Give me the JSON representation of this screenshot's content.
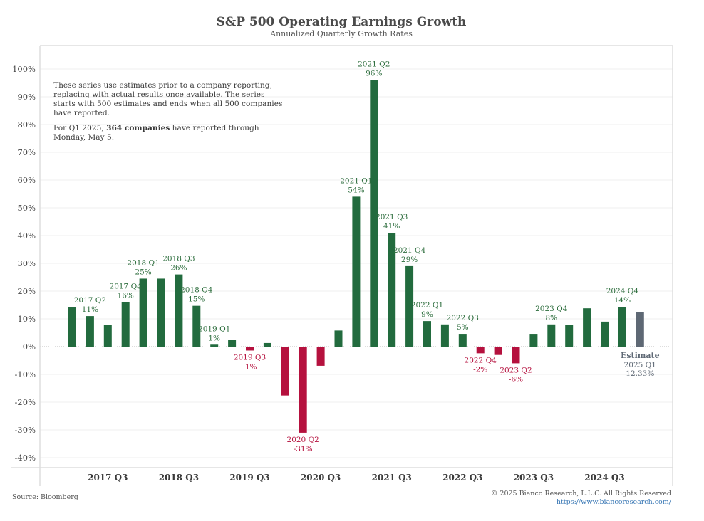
{
  "chart_data": {
    "type": "bar",
    "title": "S&P 500 Operating Earnings Growth",
    "subtitle": "Annualized Quarterly Growth Rates",
    "xlabel": "",
    "ylabel": "",
    "ylim": [
      -45,
      105
    ],
    "y_ticks": [
      100,
      90,
      80,
      70,
      60,
      50,
      40,
      30,
      20,
      10,
      0,
      -10,
      -20,
      -30,
      -40
    ],
    "y_tick_labels": [
      "100%",
      "90%",
      "80%",
      "70%",
      "60%",
      "50%",
      "40%",
      "30%",
      "20%",
      "10%",
      "0%",
      "-10%",
      "-20%",
      "-30%",
      "-40%"
    ],
    "grid": true,
    "categories": [
      "2017 Q1",
      "2017 Q2",
      "2017 Q3",
      "2017 Q4",
      "2018 Q1",
      "2018 Q2",
      "2018 Q3",
      "2018 Q4",
      "2019 Q1",
      "2019 Q2",
      "2019 Q3",
      "2019 Q4",
      "2020 Q1",
      "2020 Q2",
      "2020 Q3",
      "2020 Q4",
      "2021 Q1",
      "2021 Q2",
      "2021 Q3",
      "2021 Q4",
      "2022 Q1",
      "2022 Q2",
      "2022 Q3",
      "2022 Q4",
      "2023 Q1",
      "2023 Q2",
      "2023 Q3",
      "2023 Q4",
      "2024 Q1",
      "2024 Q2",
      "2024 Q3",
      "2024 Q4",
      "2025 Q1"
    ],
    "values": [
      14.1,
      11,
      7.7,
      16,
      24.5,
      24.5,
      26,
      14.7,
      0.7,
      2.5,
      -1.4,
      1.3,
      -17.6,
      -31,
      -6.9,
      5.8,
      54,
      96,
      41,
      29,
      9.2,
      8,
      4.6,
      -2.4,
      -3,
      -6,
      4.6,
      8,
      7.7,
      13.8,
      9,
      14.3,
      12.33
    ],
    "estimate_index": 32,
    "x_tick_labels": [
      {
        "index": 2,
        "label": "2017 Q3"
      },
      {
        "index": 6,
        "label": "2018 Q3"
      },
      {
        "index": 10,
        "label": "2019 Q3"
      },
      {
        "index": 14,
        "label": "2020 Q3"
      },
      {
        "index": 18,
        "label": "2021 Q3"
      },
      {
        "index": 22,
        "label": "2022 Q3"
      },
      {
        "index": 26,
        "label": "2023 Q3"
      },
      {
        "index": 30,
        "label": "2024 Q3"
      }
    ],
    "annotations": [
      {
        "index": 1,
        "label": "2017 Q2",
        "value_label": "11%"
      },
      {
        "index": 3,
        "label": "2017 Q4",
        "value_label": "16%"
      },
      {
        "index": 4,
        "label": "2018 Q1",
        "value_label": "25%"
      },
      {
        "index": 6,
        "label": "2018 Q3",
        "value_label": "26%"
      },
      {
        "index": 7,
        "label": "2018 Q4",
        "value_label": "15%"
      },
      {
        "index": 8,
        "label": "2019 Q1",
        "value_label": "1%"
      },
      {
        "index": 10,
        "label": "2019 Q3",
        "value_label": "-1%"
      },
      {
        "index": 13,
        "label": "2020 Q2",
        "value_label": "-31%"
      },
      {
        "index": 16,
        "label": "2021 Q1",
        "value_label": "54%"
      },
      {
        "index": 17,
        "label": "2021 Q2",
        "value_label": "96%"
      },
      {
        "index": 18,
        "label": "2021 Q3",
        "value_label": "41%"
      },
      {
        "index": 19,
        "label": "2021 Q4",
        "value_label": "29%"
      },
      {
        "index": 20,
        "label": "2022 Q1",
        "value_label": "9%"
      },
      {
        "index": 22,
        "label": "2022 Q3",
        "value_label": "5%"
      },
      {
        "index": 23,
        "label": "2022 Q4",
        "value_label": "-2%"
      },
      {
        "index": 25,
        "label": "2023 Q2",
        "value_label": "-6%"
      },
      {
        "index": 27,
        "label": "2023 Q4",
        "value_label": "8%"
      },
      {
        "index": 31,
        "label": "2024 Q4",
        "value_label": "14%"
      }
    ],
    "estimate_annotation": {
      "heading": "Estimate",
      "label": "2025 Q1",
      "value_label": "12.33%"
    },
    "colors": {
      "positive": "#226b3e",
      "negative": "#b5113e",
      "estimate": "#5e6874",
      "grid": "#efefef",
      "axis": "#dddddd"
    }
  },
  "note": {
    "paragraph1": "These series use estimates prior to a company reporting, replacing with actual results once available. The series starts with 500 estimates and ends when all 500 companies have reported.",
    "paragraph2_prefix": "For Q1 2025, ",
    "paragraph2_bold": "364 companies",
    "paragraph2_suffix": " have reported through Monday, May 5."
  },
  "footer": {
    "source": "Source: Bloomberg",
    "copyright": "© 2025 Bianco Research, L.L.C. All Rights Reserved",
    "url": "https://www.biancoresearch.com/"
  }
}
